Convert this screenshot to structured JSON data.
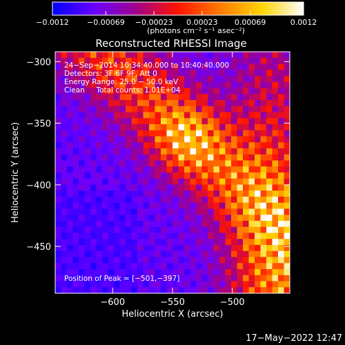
{
  "chart_data": {
    "type": "heatmap",
    "title": "Reconstructed RHESSI Image",
    "xlabel": "Heliocentric X (arcsec)",
    "ylabel": "Heliocentric Y (arcsec)",
    "xlim": [
      -648,
      -452
    ],
    "ylim": [
      -488,
      -292
    ],
    "xticks": [
      -600,
      -550,
      -500
    ],
    "yticks": [
      -300,
      -350,
      -400,
      -450
    ],
    "xtick_labels": [
      "−600",
      "−550",
      "−500"
    ],
    "ytick_labels": [
      "−300",
      "−350",
      "−400",
      "−450"
    ],
    "colorbar": {
      "range": [
        -0.0012,
        0.0012
      ],
      "ticks": [
        -0.0012,
        -0.00069,
        -0.00023,
        0.00023,
        0.00069,
        0.0012
      ],
      "tick_labels": [
        "−0.0012",
        "−0.00069",
        "−0.00023",
        "0.00023",
        "0.00069",
        "0.0012"
      ],
      "unit_label": "(photons cm⁻² s⁻¹ asec⁻²)",
      "colors": [
        "#0000ff",
        "#6a00ff",
        "#a0008a",
        "#ff1500",
        "#ff7a00",
        "#ffd400",
        "#ffffff"
      ]
    },
    "annotations": [
      "24−Sep−2014 10:34:40.000 to 10:40:40.000",
      "Detectors: 3F 6F 9F, Att 0",
      "Energy Range: 25.0 − 50.0 keV",
      "Clean     Total counts: 1.01E+04"
    ],
    "peak_label": "Position of Peak = [−501,−397]",
    "peak": [
      -501,
      -397
    ]
  },
  "footer": {
    "timestamp": "17−May−2022 12:47"
  }
}
